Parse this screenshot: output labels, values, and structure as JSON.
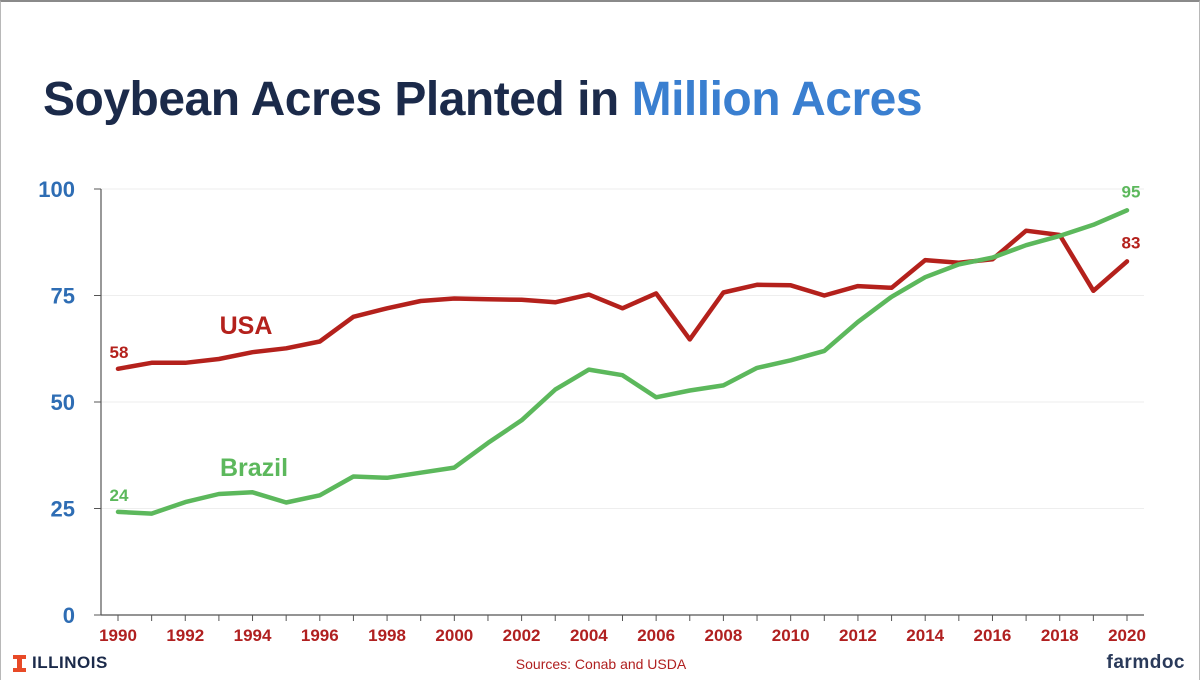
{
  "title": {
    "main": "Soybean Acres Planted in",
    "accent": "Million Acres"
  },
  "footer": {
    "logo_text": "ILLINOIS",
    "sources": "Sources: Conab and USDA",
    "brand": "farmdoc"
  },
  "colors": {
    "usa": "#b4211c",
    "brazil": "#5cb85c",
    "title": "#1b2a4a",
    "accent": "#3a7fd0",
    "axis_text": "#2e6db4",
    "tick_text": "#b02020"
  },
  "chart_data": {
    "type": "line",
    "title": "Soybean Acres Planted in Million Acres",
    "xlabel": "",
    "ylabel": "",
    "ylim": [
      0,
      100
    ],
    "yticks": [
      0,
      25,
      50,
      75,
      100
    ],
    "xlim": [
      1990,
      2020
    ],
    "xtick_labels": [
      "1990",
      "1992",
      "1994",
      "1996",
      "1998",
      "2000",
      "2002",
      "2004",
      "2006",
      "2008",
      "2010",
      "2012",
      "2014",
      "2016",
      "2018",
      "2020"
    ],
    "grid": true,
    "x": [
      1990,
      1991,
      1992,
      1993,
      1994,
      1995,
      1996,
      1997,
      1998,
      1999,
      2000,
      2001,
      2002,
      2003,
      2004,
      2005,
      2006,
      2007,
      2008,
      2009,
      2010,
      2011,
      2012,
      2013,
      2014,
      2015,
      2016,
      2017,
      2018,
      2019,
      2020
    ],
    "series": [
      {
        "name": "USA",
        "color": "#b4211c",
        "values": [
          57.8,
          59.2,
          59.2,
          60.1,
          61.7,
          62.6,
          64.2,
          70.0,
          72.0,
          73.7,
          74.3,
          74.1,
          74.0,
          73.4,
          75.2,
          72.0,
          75.5,
          64.7,
          75.7,
          77.5,
          77.4,
          75.0,
          77.2,
          76.8,
          83.3,
          82.7,
          83.5,
          90.2,
          89.2,
          76.1,
          83.0
        ],
        "start_label": "58",
        "end_label": "83"
      },
      {
        "name": "Brazil",
        "color": "#5cb85c",
        "values": [
          24.2,
          23.8,
          26.5,
          28.4,
          28.8,
          26.4,
          28.1,
          32.5,
          32.2,
          33.4,
          34.6,
          40.4,
          45.7,
          52.9,
          57.6,
          56.3,
          51.1,
          52.7,
          53.9,
          58.0,
          59.8,
          62.0,
          68.8,
          74.7,
          79.3,
          82.3,
          83.9,
          86.8,
          89.0,
          91.6,
          95.0
        ],
        "start_label": "24",
        "end_label": "95"
      }
    ]
  }
}
